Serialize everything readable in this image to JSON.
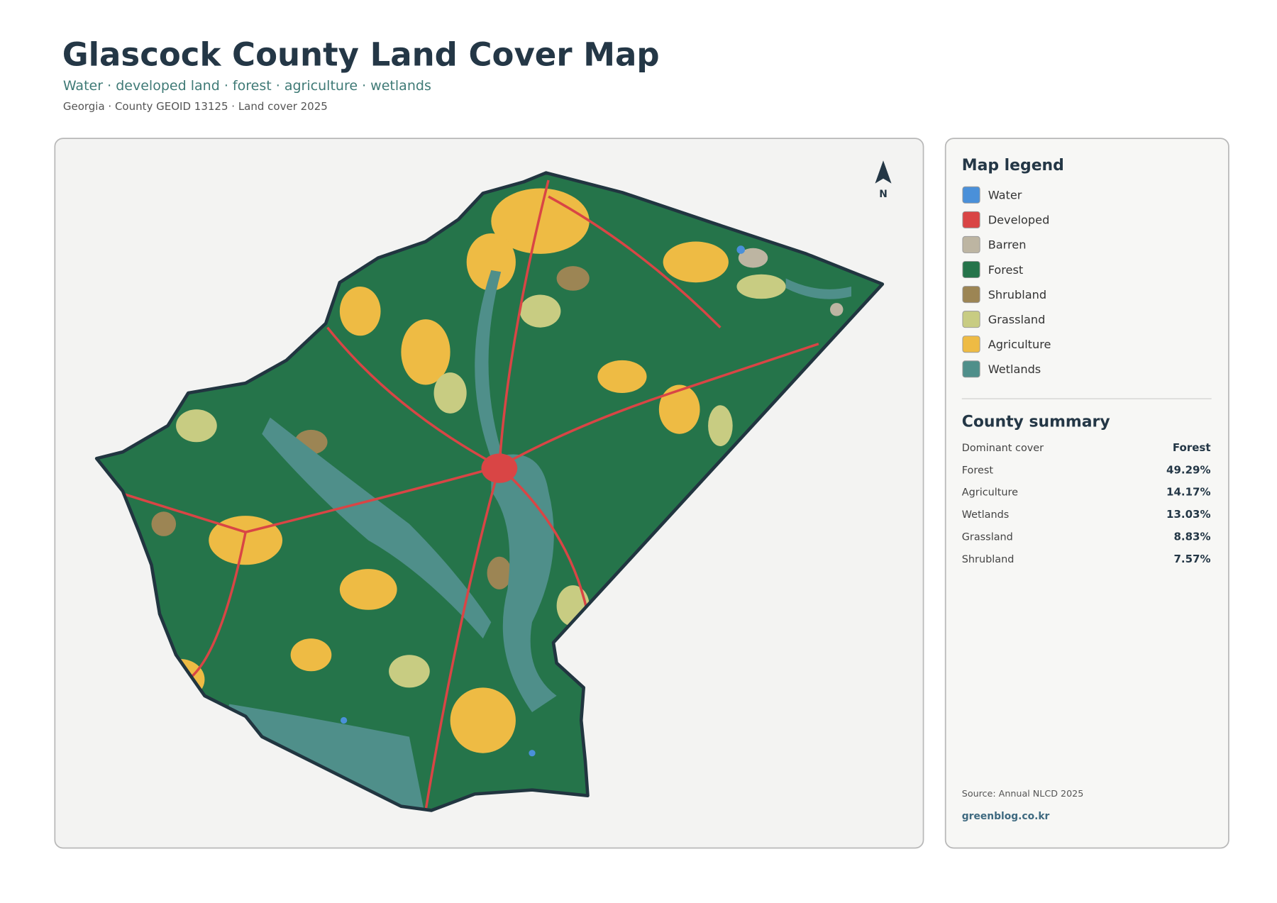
{
  "header": {
    "title": "Glascock County Land Cover Map",
    "subtitle": "Water · developed land · forest · agriculture · wetlands",
    "meta": "Georgia · County GEOID 13125 · Land cover 2025"
  },
  "map": {
    "north_label": "N"
  },
  "legend": {
    "title": "Map legend",
    "items": [
      {
        "label": "Water",
        "color": "#4a90d9"
      },
      {
        "label": "Developed",
        "color": "#d94545"
      },
      {
        "label": "Barren",
        "color": "#bdb5a2"
      },
      {
        "label": "Forest",
        "color": "#25744a"
      },
      {
        "label": "Shrubland",
        "color": "#9c8554"
      },
      {
        "label": "Grassland",
        "color": "#c8cc82"
      },
      {
        "label": "Agriculture",
        "color": "#eebb44"
      },
      {
        "label": "Wetlands",
        "color": "#4f8f8a"
      }
    ]
  },
  "summary": {
    "title": "County summary",
    "rows": [
      {
        "label": "Dominant cover",
        "value": "Forest"
      },
      {
        "label": "Forest",
        "value": "49.29%"
      },
      {
        "label": "Agriculture",
        "value": "14.17%"
      },
      {
        "label": "Wetlands",
        "value": "13.03%"
      },
      {
        "label": "Grassland",
        "value": "8.83%"
      },
      {
        "label": "Shrubland",
        "value": "7.57%"
      }
    ]
  },
  "footer": {
    "source": "Source: Annual NLCD 2025",
    "site": "greenblog.co.kr"
  }
}
